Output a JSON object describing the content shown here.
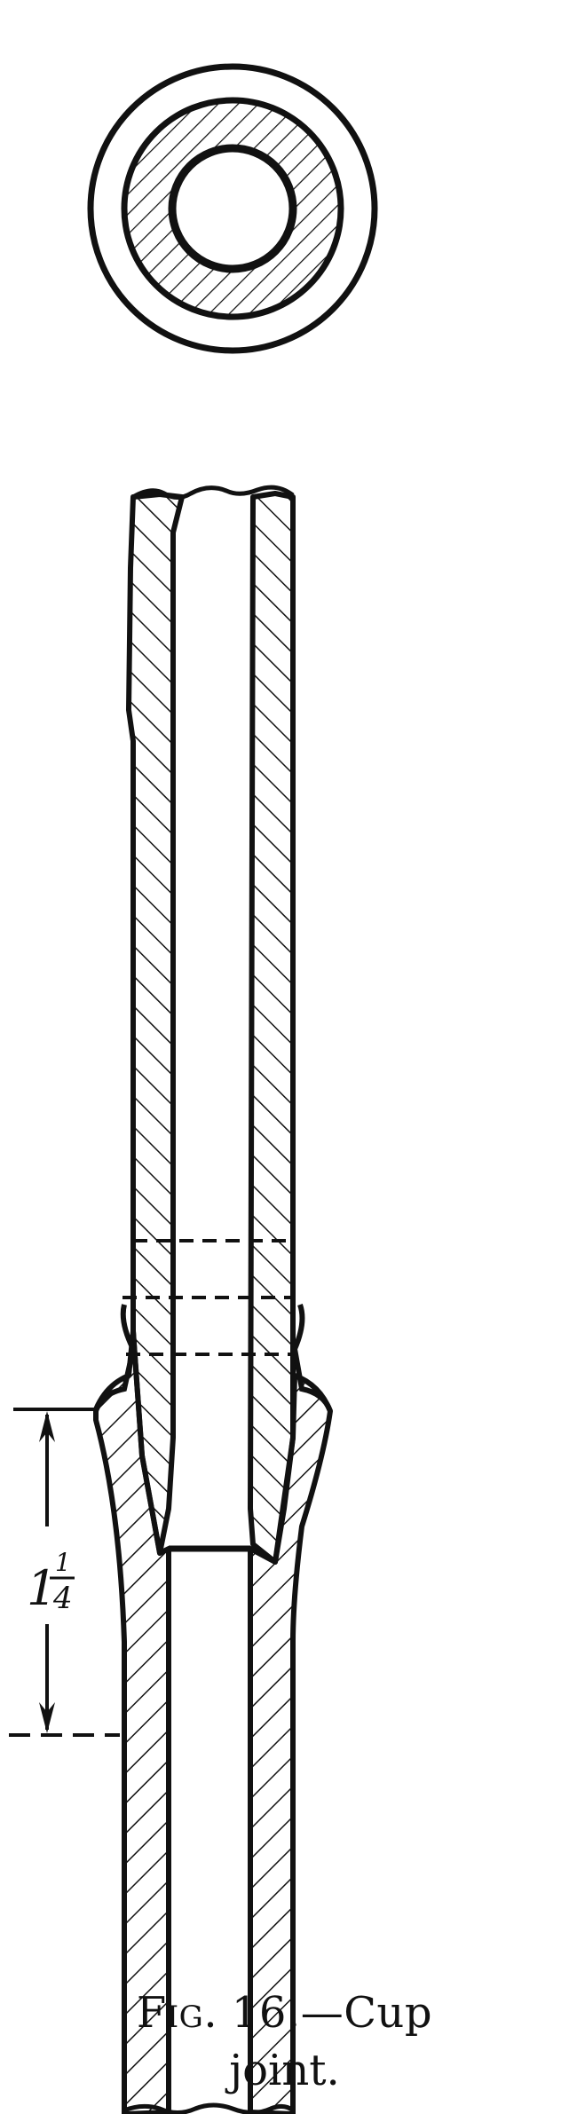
{
  "figure": {
    "label": "Fig.",
    "number": "16.",
    "dash": "—",
    "caption_line1": "Cup",
    "caption_line2": "joint."
  },
  "dimension": {
    "whole": "1",
    "fraction_numerator": "1",
    "fraction_denominator": "4"
  },
  "colors": {
    "ink": "#111111",
    "paper": "#ffffff"
  }
}
